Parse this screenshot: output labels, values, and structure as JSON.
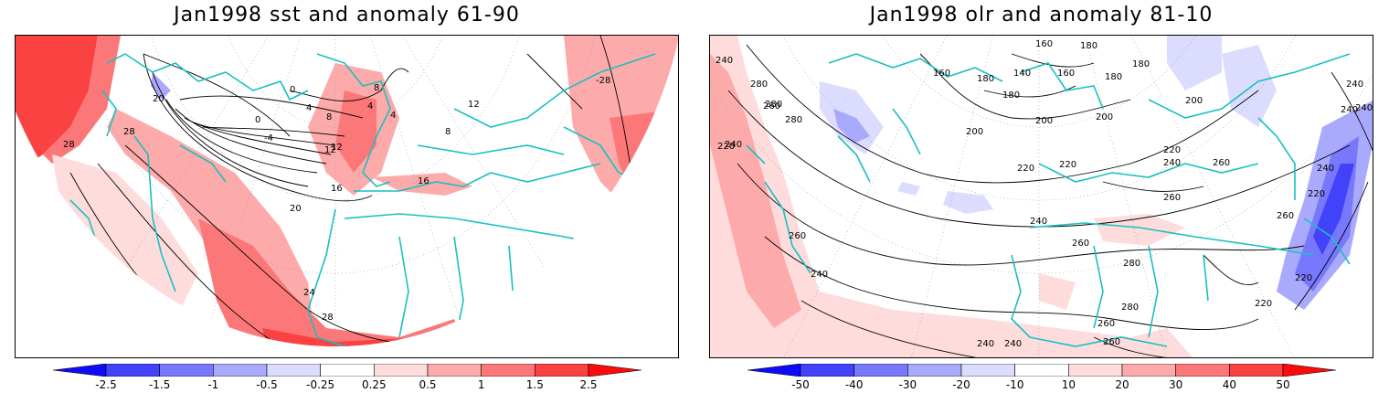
{
  "panels": {
    "left": {
      "title": "Jan1998 sst and anomaly 61-90",
      "contour_labels": [
        "28",
        "20",
        "0",
        "4",
        "8",
        "4",
        "12",
        "0",
        "-4",
        "12",
        "16",
        "20",
        "24",
        "28",
        "-28",
        "16",
        "4",
        "8",
        "12",
        "-28",
        "28",
        "8"
      ]
    },
    "right": {
      "title": "Jan1998 olr and anomaly 81-10",
      "contour_labels": [
        "240",
        "160",
        "180",
        "280",
        "160",
        "180",
        "140",
        "180",
        "160",
        "180",
        "200",
        "200",
        "280",
        "240",
        "260",
        "180",
        "200",
        "280",
        "240",
        "240",
        "200",
        "220",
        "220",
        "220",
        "220",
        "240",
        "260",
        "260",
        "240",
        "260",
        "220",
        "240",
        "260",
        "280",
        "260",
        "240",
        "220",
        "260",
        "240",
        "240",
        "260",
        "280",
        "220",
        "240"
      ]
    }
  },
  "colorbars": {
    "left": {
      "levels": [
        "-2.5",
        "-1.5",
        "-1",
        "-0.5",
        "-0.25",
        "0.25",
        "0.5",
        "1",
        "1.5",
        "2.5"
      ],
      "colors": [
        "#0c0cfa",
        "#4242fb",
        "#7878fc",
        "#aaaafd",
        "#dcdcfe",
        "#ffffff",
        "#fedcdc",
        "#fdaaaa",
        "#fc7878",
        "#fb4242",
        "#fa0c0c"
      ]
    },
    "right": {
      "levels": [
        "-50",
        "-40",
        "-30",
        "-20",
        "-10",
        "10",
        "20",
        "30",
        "40",
        "50"
      ],
      "colors": [
        "#0c0cfa",
        "#4242fb",
        "#7878fc",
        "#aaaafd",
        "#dcdcfe",
        "#ffffff",
        "#fedcdc",
        "#fdaaaa",
        "#fc7878",
        "#fb4242",
        "#fa0c0c"
      ]
    }
  },
  "colors": {
    "coast": "#19c0c0",
    "grid": "#999999",
    "contour": "#000000",
    "frame": "#000000"
  }
}
